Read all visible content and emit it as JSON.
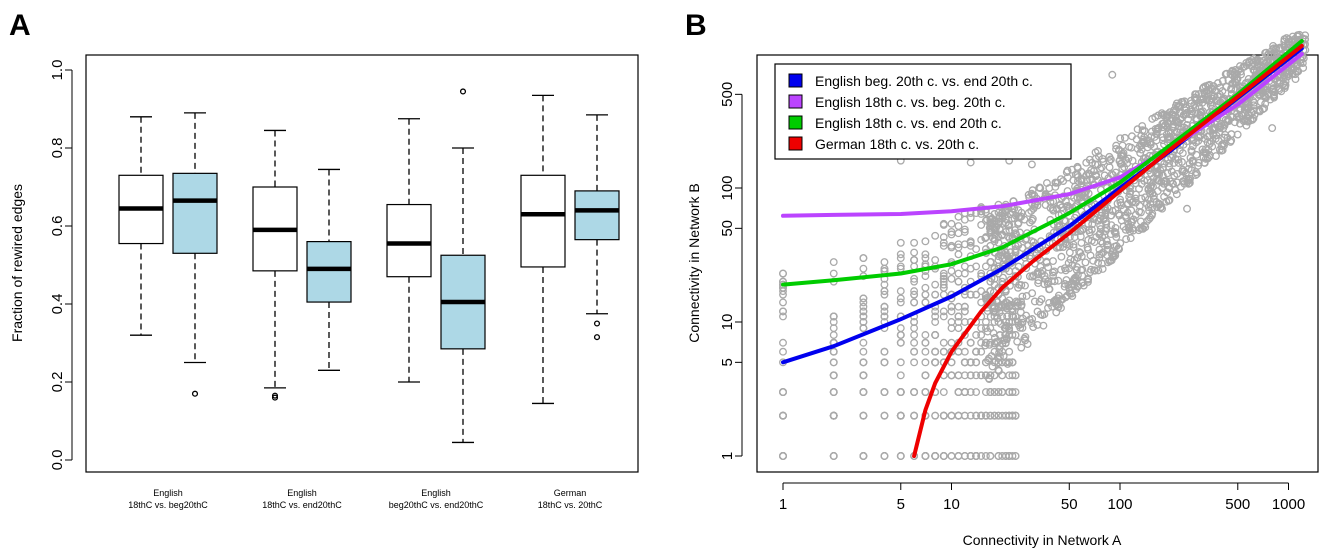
{
  "panels": {
    "a_label": "A",
    "b_label": "B"
  },
  "chart_data": [
    {
      "type": "box",
      "title": "",
      "ylabel": "Fraction of rewired edges",
      "xlabel": "",
      "ylim": [
        0,
        1
      ],
      "yticks": [
        "0.0",
        "0.2",
        "0.4",
        "0.6",
        "0.8",
        "1.0"
      ],
      "groups": [
        {
          "label_line1": "English",
          "label_line2": "18thC vs. beg20thC",
          "boxes": [
            {
              "fill": "#ffffff",
              "min": 0.32,
              "q1": 0.555,
              "median": 0.645,
              "q3": 0.73,
              "max": 0.88,
              "outliers": []
            },
            {
              "fill": "#add8e6",
              "min": 0.25,
              "q1": 0.53,
              "median": 0.665,
              "q3": 0.735,
              "max": 0.89,
              "outliers": [
                0.17
              ]
            }
          ]
        },
        {
          "label_line1": "English",
          "label_line2": "18thC vs. end20thC",
          "boxes": [
            {
              "fill": "#ffffff",
              "min": 0.185,
              "q1": 0.485,
              "median": 0.59,
              "q3": 0.7,
              "max": 0.845,
              "outliers": [
                0.165,
                0.16
              ]
            },
            {
              "fill": "#add8e6",
              "min": 0.23,
              "q1": 0.405,
              "median": 0.49,
              "q3": 0.56,
              "max": 0.745,
              "outliers": []
            }
          ]
        },
        {
          "label_line1": "English",
          "label_line2": "beg20thC vs. end20thC",
          "boxes": [
            {
              "fill": "#ffffff",
              "min": 0.2,
              "q1": 0.47,
              "median": 0.555,
              "q3": 0.655,
              "max": 0.875,
              "outliers": []
            },
            {
              "fill": "#add8e6",
              "min": 0.045,
              "q1": 0.285,
              "median": 0.405,
              "q3": 0.525,
              "max": 0.8,
              "outliers": [
                0.945
              ]
            }
          ]
        },
        {
          "label_line1": "German",
          "label_line2": "18thC vs. 20thC",
          "boxes": [
            {
              "fill": "#ffffff",
              "min": 0.145,
              "q1": 0.495,
              "median": 0.63,
              "q3": 0.73,
              "max": 0.935,
              "outliers": []
            },
            {
              "fill": "#add8e6",
              "min": 0.375,
              "q1": 0.565,
              "median": 0.64,
              "q3": 0.69,
              "max": 0.885,
              "outliers": [
                0.35,
                0.315
              ]
            }
          ]
        }
      ]
    },
    {
      "type": "scatter",
      "title": "",
      "xlabel": "Connectivity in Network A",
      "ylabel": "Connectivity in Network B",
      "xscale": "log",
      "yscale": "log",
      "xlim": [
        1,
        1300
      ],
      "ylim": [
        1,
        1300
      ],
      "xticks": [
        "1",
        "5",
        "10",
        "50",
        "100",
        "500",
        "1000"
      ],
      "yticks": [
        "1",
        "5",
        "10",
        "50",
        "100",
        "500"
      ],
      "point_color": "#a9a9a9",
      "legend_position": "top-left",
      "series": [
        {
          "name": "English beg. 20th c. vs. end 20th c.",
          "color": "#0000ee",
          "x": [
            1,
            2,
            5,
            10,
            20,
            50,
            100,
            200,
            500,
            1200
          ],
          "y": [
            5,
            6.6,
            10.5,
            15.5,
            25,
            52,
            100,
            190,
            470,
            1100
          ]
        },
        {
          "name": "English 18th c. vs. beg. 20th c.",
          "color": "#bb44ff",
          "x": [
            1,
            2,
            5,
            10,
            20,
            50,
            100,
            200,
            500,
            1200
          ],
          "y": [
            62,
            63,
            64,
            67,
            73,
            90,
            120,
            200,
            420,
            1000
          ]
        },
        {
          "name": "English 18th c. vs. end 20th c.",
          "color": "#00cc00",
          "x": [
            1,
            2,
            5,
            10,
            20,
            50,
            100,
            200,
            500,
            1200
          ],
          "y": [
            19,
            20.5,
            23,
            27,
            36,
            65,
            110,
            210,
            500,
            1250
          ]
        },
        {
          "name": "German 18th c. vs. 20th c.",
          "color": "#ee0000",
          "x": [
            6,
            7,
            8,
            10,
            15,
            20,
            30,
            50,
            100,
            200,
            500,
            1200
          ],
          "y": [
            1,
            2.2,
            3.5,
            6,
            12,
            18,
            28,
            46,
            95,
            195,
            480,
            1150
          ]
        }
      ]
    }
  ]
}
